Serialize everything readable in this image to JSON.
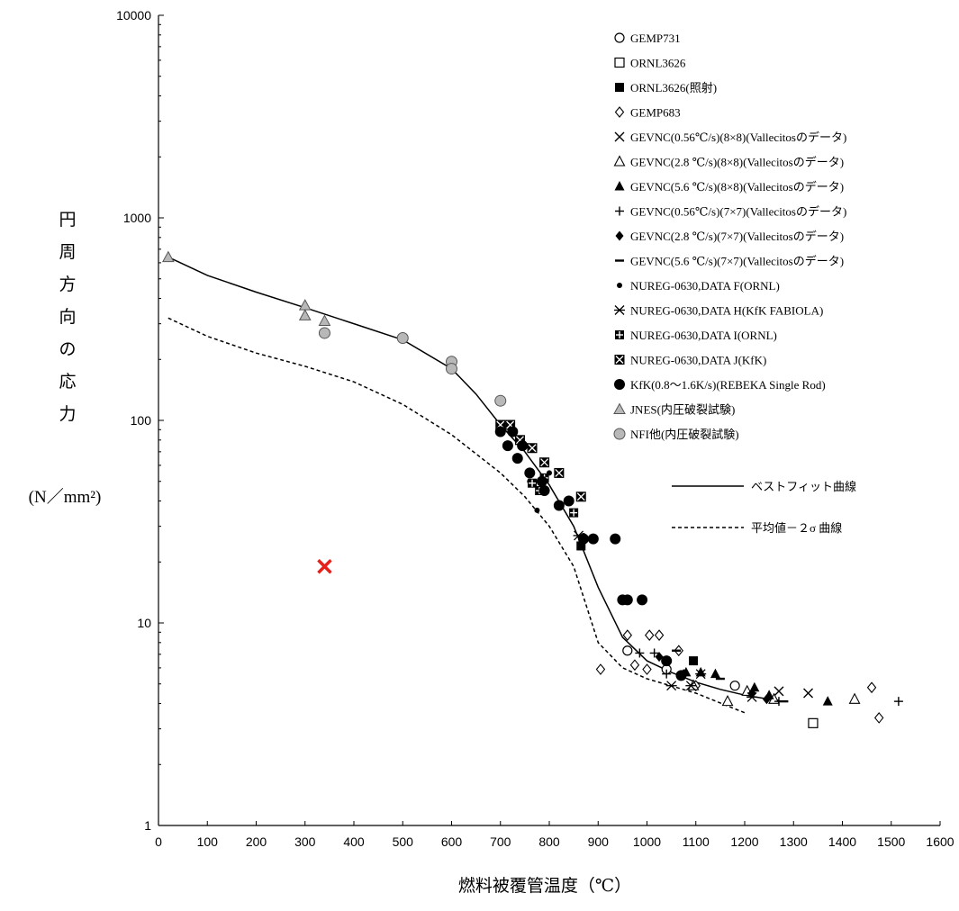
{
  "chart_data": {
    "type": "scatter",
    "xlabel": "燃料被覆管温度（℃）",
    "ylabel_chars": [
      "円",
      "周",
      "方",
      "向",
      "の",
      "応",
      "力"
    ],
    "ylabel_unit": "(N／mm²)",
    "xlim": [
      0,
      1600
    ],
    "ylim": [
      1,
      10000
    ],
    "y_scale": "log",
    "x_ticks": [
      "0",
      "100",
      "200",
      "300",
      "400",
      "500",
      "600",
      "700",
      "800",
      "900",
      "1000",
      "1100",
      "1200",
      "1300",
      "1400",
      "1500",
      "1600"
    ],
    "y_ticks": [
      "1",
      "10",
      "100",
      "1000",
      "10000"
    ],
    "grid": false,
    "legend_position": "top-right",
    "colors": {
      "black": "#000000",
      "gray_fill": "#b8b8b8",
      "red_marker": "#e8201a"
    },
    "series": [
      {
        "name": "GEMP731",
        "marker": "circle-open",
        "points": [
          [
            960,
            7.3
          ],
          [
            1040,
            5.9
          ],
          [
            1180,
            4.9
          ]
        ]
      },
      {
        "name": "ORNL3626",
        "marker": "square-open",
        "points": [
          [
            1340,
            3.2
          ]
        ]
      },
      {
        "name": "ORNL3626(照射)",
        "marker": "square-filled",
        "points": [
          [
            865,
            24
          ],
          [
            955,
            13
          ],
          [
            1095,
            6.5
          ]
        ]
      },
      {
        "name": "GEMP683",
        "marker": "diamond-open",
        "points": [
          [
            905,
            5.9
          ],
          [
            960,
            8.7
          ],
          [
            975,
            6.2
          ],
          [
            1000,
            5.9
          ],
          [
            1005,
            8.7
          ],
          [
            1025,
            8.7
          ],
          [
            1065,
            7.3
          ],
          [
            1100,
            4.9
          ],
          [
            1460,
            4.8
          ],
          [
            1475,
            3.4
          ]
        ]
      },
      {
        "name": "GEVNC(0.56℃/s)(8×8)(Vallecitosのデータ)",
        "marker": "x",
        "points": [
          [
            1270,
            4.6
          ],
          [
            1330,
            4.5
          ]
        ]
      },
      {
        "name": "GEVNC(2.8 ℃/s)(8×8)(Vallecitosのデータ)",
        "marker": "triangle-open",
        "points": [
          [
            1095,
            4.9
          ],
          [
            1165,
            4.1
          ],
          [
            1205,
            4.6
          ],
          [
            1260,
            4.2
          ],
          [
            1425,
            4.2
          ]
        ]
      },
      {
        "name": "GEVNC(5.6 ℃/s)(8×8)(Vallecitosのデータ)",
        "marker": "triangle-filled",
        "points": [
          [
            1080,
            5.7
          ],
          [
            1110,
            5.7
          ],
          [
            1140,
            5.6
          ],
          [
            1220,
            4.8
          ],
          [
            1250,
            4.4
          ],
          [
            1370,
            4.1
          ]
        ]
      },
      {
        "name": "GEVNC(0.56℃/s)(7×7)(Vallecitosのデータ)",
        "marker": "plus",
        "points": [
          [
            985,
            7.1
          ],
          [
            1015,
            7.1
          ],
          [
            1040,
            5.6
          ],
          [
            1270,
            4.1
          ],
          [
            1515,
            4.1
          ]
        ]
      },
      {
        "name": "GEVNC(2.8 ℃/s)(7×7)(Vallecitosのデータ)",
        "marker": "diamond-filled",
        "points": [
          [
            1025,
            6.8
          ],
          [
            1075,
            5.6
          ],
          [
            1215,
            4.5
          ],
          [
            1245,
            4.2
          ]
        ]
      },
      {
        "name": "GEVNC(5.6 ℃/s)(7×7)(Vallecitosのデータ)",
        "marker": "dash",
        "points": [
          [
            1060,
            7.3
          ],
          [
            1150,
            5.3
          ],
          [
            1280,
            4.1
          ]
        ]
      },
      {
        "name": "NUREG-0630,DATA F(ORNL)",
        "marker": "dot",
        "points": [
          [
            760,
            50
          ],
          [
            775,
            36
          ],
          [
            800,
            55
          ],
          [
            870,
            27
          ]
        ]
      },
      {
        "name": "NUREG-0630,DATA H(KfK FABIOLA)",
        "marker": "asterisk",
        "points": [
          [
            860,
            27
          ],
          [
            1050,
            4.9
          ],
          [
            1090,
            4.9
          ],
          [
            1110,
            5.6
          ],
          [
            1215,
            4.3
          ]
        ]
      },
      {
        "name": "NUREG-0630,DATA I(ORNL)",
        "marker": "square-plus",
        "points": [
          [
            765,
            49
          ],
          [
            780,
            45
          ],
          [
            790,
            52
          ],
          [
            850,
            35
          ]
        ]
      },
      {
        "name": "NUREG-0630,DATA J(KfK)",
        "marker": "square-x",
        "points": [
          [
            700,
            95
          ],
          [
            720,
            95
          ],
          [
            740,
            80
          ],
          [
            765,
            73
          ],
          [
            790,
            62
          ],
          [
            820,
            55
          ],
          [
            865,
            42
          ]
        ]
      },
      {
        "name": "KfK(0.8～1.6K/s)(REBEKA Single Rod)",
        "marker": "circle-filled",
        "points": [
          [
            700,
            88
          ],
          [
            715,
            75
          ],
          [
            725,
            88
          ],
          [
            735,
            65
          ],
          [
            745,
            75
          ],
          [
            760,
            55
          ],
          [
            785,
            50
          ],
          [
            790,
            45
          ],
          [
            820,
            38
          ],
          [
            840,
            40
          ],
          [
            870,
            26
          ],
          [
            890,
            26
          ],
          [
            935,
            26
          ],
          [
            950,
            13
          ],
          [
            960,
            13
          ],
          [
            990,
            13
          ],
          [
            1040,
            6.5
          ],
          [
            1070,
            5.5
          ]
        ]
      },
      {
        "name": "JNES(内圧破裂試験)",
        "marker": "triangle-gray",
        "points": [
          [
            20,
            640
          ],
          [
            300,
            370
          ],
          [
            340,
            310
          ],
          [
            300,
            330
          ]
        ]
      },
      {
        "name": "NFI他(内圧破裂試験)",
        "marker": "circle-gray",
        "points": [
          [
            340,
            270
          ],
          [
            500,
            255
          ],
          [
            600,
            195
          ],
          [
            600,
            180
          ],
          [
            700,
            125
          ]
        ]
      }
    ],
    "curves": [
      {
        "name": "ベストフィット曲線",
        "style": "solid",
        "points": [
          [
            20,
            640
          ],
          [
            100,
            520
          ],
          [
            200,
            430
          ],
          [
            300,
            360
          ],
          [
            400,
            300
          ],
          [
            500,
            250
          ],
          [
            600,
            180
          ],
          [
            650,
            135
          ],
          [
            700,
            95
          ],
          [
            750,
            70
          ],
          [
            800,
            48
          ],
          [
            850,
            30
          ],
          [
            900,
            15
          ],
          [
            950,
            8.5
          ],
          [
            1000,
            6.5
          ],
          [
            1050,
            5.7
          ],
          [
            1100,
            5.1
          ],
          [
            1150,
            4.7
          ],
          [
            1200,
            4.4
          ],
          [
            1250,
            4.2
          ],
          [
            1270,
            4.15
          ]
        ]
      },
      {
        "name": "平均値－２σ 曲線",
        "style": "dashed",
        "points": [
          [
            20,
            320
          ],
          [
            100,
            260
          ],
          [
            200,
            215
          ],
          [
            300,
            185
          ],
          [
            400,
            155
          ],
          [
            500,
            120
          ],
          [
            600,
            85
          ],
          [
            700,
            55
          ],
          [
            750,
            42
          ],
          [
            800,
            30
          ],
          [
            850,
            19
          ],
          [
            900,
            8
          ],
          [
            950,
            6
          ],
          [
            1000,
            5.3
          ],
          [
            1100,
            4.5
          ],
          [
            1200,
            3.6
          ]
        ]
      }
    ],
    "annotation_marker": {
      "marker": "red-x",
      "x": 340,
      "y": 19
    }
  }
}
